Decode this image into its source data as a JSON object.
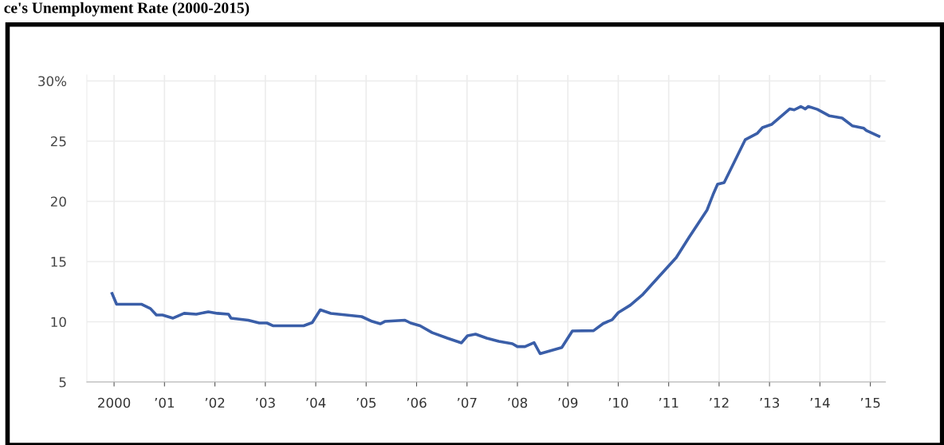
{
  "chart_data": {
    "type": "line",
    "title": "ce's Unemployment Rate (2000-2015)",
    "series": [
      {
        "color": "#3a5ea8",
        "x": [
          1999.96,
          2000.05,
          2000.54,
          2000.72,
          2000.84,
          2000.96,
          2001.17,
          2001.39,
          2001.63,
          2001.87,
          2002.05,
          2002.27,
          2002.32,
          2002.66,
          2002.88,
          2003.03,
          2003.15,
          2003.76,
          2003.93,
          2004.09,
          2004.3,
          2004.91,
          2005.12,
          2005.28,
          2005.37,
          2005.77,
          2005.88,
          2006.07,
          2006.31,
          2006.61,
          2006.89,
          2007.01,
          2007.17,
          2007.39,
          2007.63,
          2007.9,
          2008.0,
          2008.15,
          2008.33,
          2008.45,
          2008.88,
          2009.09,
          2009.51,
          2009.7,
          2009.88,
          2010.0,
          2010.24,
          2010.49,
          2010.79,
          2011.15,
          2011.4,
          2011.76,
          2011.88,
          2011.97,
          2012.1,
          2012.52,
          2012.76,
          2012.86,
          2013.04,
          2013.4,
          2013.49,
          2013.62,
          2013.71,
          2013.77,
          2013.95,
          2014.19,
          2014.44,
          2014.64,
          2014.87,
          2014.92,
          2015.17
        ],
        "values": [
          12.35,
          11.46,
          11.46,
          11.1,
          10.56,
          10.56,
          10.3,
          10.7,
          10.63,
          10.83,
          10.7,
          10.63,
          10.3,
          10.13,
          9.9,
          9.9,
          9.67,
          9.67,
          9.93,
          10.99,
          10.7,
          10.43,
          10.03,
          9.83,
          10.03,
          10.13,
          9.9,
          9.67,
          9.1,
          8.64,
          8.25,
          8.84,
          8.97,
          8.64,
          8.38,
          8.18,
          7.94,
          7.94,
          8.27,
          7.35,
          7.86,
          9.24,
          9.26,
          9.85,
          10.17,
          10.76,
          11.38,
          12.28,
          13.68,
          15.33,
          16.99,
          19.27,
          20.56,
          21.42,
          21.56,
          25.13,
          25.66,
          26.13,
          26.39,
          27.68,
          27.6,
          27.88,
          27.68,
          27.88,
          27.64,
          27.1,
          26.92,
          26.28,
          26.07,
          25.89,
          25.4
        ]
      }
    ],
    "xlim": [
      1999.46,
      2015.3
    ],
    "xticks": [
      {
        "value": 2000,
        "label": "2000"
      },
      {
        "value": 2001,
        "label": "’01"
      },
      {
        "value": 2002,
        "label": "’02"
      },
      {
        "value": 2003,
        "label": "’03"
      },
      {
        "value": 2004,
        "label": "’04"
      },
      {
        "value": 2005,
        "label": "’05"
      },
      {
        "value": 2006,
        "label": "’06"
      },
      {
        "value": 2007,
        "label": "’07"
      },
      {
        "value": 2008,
        "label": "’08"
      },
      {
        "value": 2009,
        "label": "’09"
      },
      {
        "value": 2010,
        "label": "’10"
      },
      {
        "value": 2011,
        "label": "’11"
      },
      {
        "value": 2012,
        "label": "’12"
      },
      {
        "value": 2013,
        "label": "’13"
      },
      {
        "value": 2014,
        "label": "’14"
      },
      {
        "value": 2015,
        "label": "’15"
      }
    ],
    "ylim": [
      5,
      30.5
    ],
    "yticks": [
      5,
      10,
      15,
      20,
      25,
      {
        "value": 30,
        "label": "30%"
      }
    ],
    "grid": true,
    "line_style": "solid"
  }
}
